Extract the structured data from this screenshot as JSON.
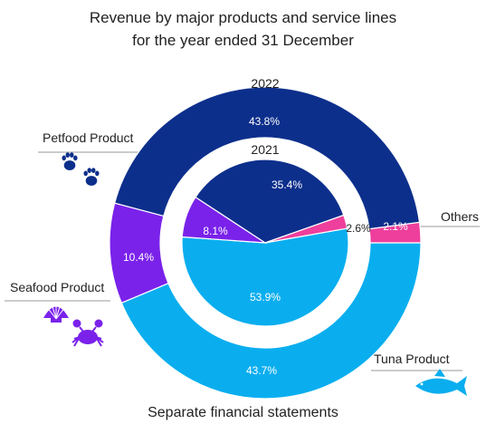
{
  "chart_data": {
    "type": "pie",
    "title_lines": [
      "Revenue by major products and service lines",
      "for the year ended 31 December"
    ],
    "footer": "Separate financial statements",
    "categories": [
      "Tuna Product",
      "Seafood Product",
      "Petfood Product",
      "Others"
    ],
    "colors": {
      "Tuna Product": "#0aaeef",
      "Seafood Product": "#7a22ea",
      "Petfood Product": "#0d2f8c",
      "Others": "#ee3f9c"
    },
    "series": [
      {
        "name": "2022",
        "role": "outer ring",
        "values": [
          43.7,
          10.4,
          43.8,
          2.1
        ],
        "labels": [
          "43.7%",
          "10.4%",
          "43.8%",
          "2.1%"
        ]
      },
      {
        "name": "2021",
        "role": "inner pie",
        "values": [
          53.9,
          8.1,
          35.4,
          2.6
        ],
        "labels": [
          "53.9%",
          "8.1%",
          "35.4%",
          "2.6%"
        ]
      }
    ],
    "icons": {
      "Petfood Product": "paw-prints-icon",
      "Seafood Product": "shell-crab-icon",
      "Tuna Product": "fish-icon"
    }
  }
}
